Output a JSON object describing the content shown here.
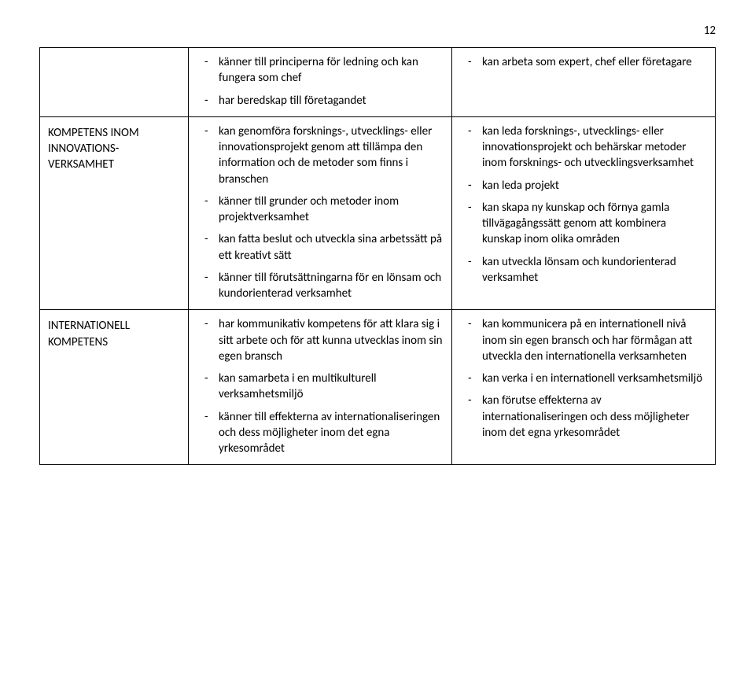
{
  "page_number": "12",
  "rows": [
    {
      "label": "",
      "left": [
        "känner till principerna för ledning och kan fungera som chef",
        "har beredskap till företagandet"
      ],
      "right": [
        "kan arbeta som expert, chef eller företagare"
      ]
    },
    {
      "label": "KOMPETENS INOM INNOVATIONS-VERKSAMHET",
      "left": [
        "kan genomföra forsknings-, utvecklings- eller innovationsprojekt genom att tillämpa den information och de metoder som finns i branschen",
        "känner till grunder och metoder inom projektverksamhet",
        "kan fatta beslut och utveckla sina arbetssätt på ett kreativt sätt",
        "känner till förutsättningarna för en lönsam och kundorienterad verksamhet"
      ],
      "right": [
        "kan leda forsknings-, utvecklings- eller innovationsprojekt och behärskar metoder inom forsknings- och utvecklingsverksamhet",
        "kan leda projekt",
        "kan skapa ny kunskap och förnya gamla tillvägagångssätt genom att kombinera kunskap inom olika områden",
        "kan utveckla lönsam och kundorienterad verksamhet"
      ]
    },
    {
      "label": "INTERNATIONELL KOMPETENS",
      "left": [
        "har kommunikativ kompetens för att klara sig i sitt arbete och för att kunna utvecklas inom sin egen bransch",
        "kan samarbeta i en multikulturell verksamhetsmiljö",
        "känner till effekterna av internationaliseringen och dess möjligheter inom det egna yrkesområdet"
      ],
      "right": [
        "kan kommunicera på en internationell nivå inom sin egen bransch och har förmågan att utveckla den internationella verksamheten",
        "kan verka i en internationell verksamhetsmiljö",
        "kan förutse effekterna av internationaliseringen och dess möjligheter inom det egna yrkesområdet"
      ]
    }
  ]
}
